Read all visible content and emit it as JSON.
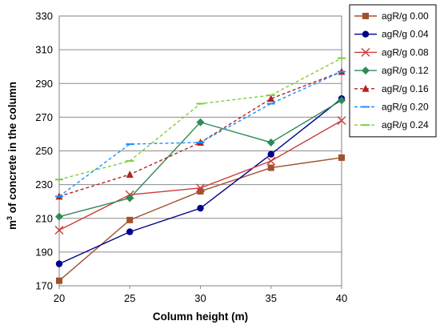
{
  "chart_data": {
    "type": "line",
    "title": "",
    "xlabel": "Column height (m)",
    "ylabel_prefix": "m",
    "ylabel_sup": "3",
    "ylabel_rest": " of concrete in the column",
    "x": [
      20,
      25,
      30,
      35,
      40
    ],
    "xlim": [
      20,
      40
    ],
    "ylim": [
      170,
      330
    ],
    "x_ticks": [
      "20",
      "25",
      "30",
      "35",
      "40"
    ],
    "y_ticks": [
      "170",
      "190",
      "210",
      "230",
      "250",
      "270",
      "290",
      "310",
      "330"
    ],
    "grid": "horizontal",
    "legend_position": "right",
    "series": [
      {
        "name": "agR/g 0.00",
        "values": [
          173,
          209,
          226,
          240,
          246
        ],
        "color": "#A0522D",
        "marker": "square",
        "dash": "solid"
      },
      {
        "name": "agR/g 0.04",
        "values": [
          183,
          202,
          216,
          248,
          281
        ],
        "color": "#00008B",
        "marker": "circle",
        "dash": "solid"
      },
      {
        "name": "agR/g 0.08",
        "values": [
          203,
          224,
          228,
          244,
          268
        ],
        "color": "#CD3C3C",
        "marker": "x",
        "dash": "solid"
      },
      {
        "name": "agR/g 0.12",
        "values": [
          211,
          222,
          267,
          255,
          280
        ],
        "color": "#2E8B57",
        "marker": "diamond",
        "dash": "solid"
      },
      {
        "name": "agR/g 0.16",
        "values": [
          223,
          236,
          255,
          281,
          297
        ],
        "color": "#B22222",
        "marker": "triangle",
        "dash": "dashed"
      },
      {
        "name": "agR/g 0.20",
        "values": [
          223,
          254,
          255,
          278,
          297
        ],
        "color": "#1E90FF",
        "marker": "dash",
        "dash": "dashed"
      },
      {
        "name": "agR/g 0.24",
        "values": [
          233,
          244,
          278,
          283,
          305
        ],
        "color": "#7CCD3C",
        "marker": "dash",
        "dash": "dashed"
      }
    ]
  }
}
